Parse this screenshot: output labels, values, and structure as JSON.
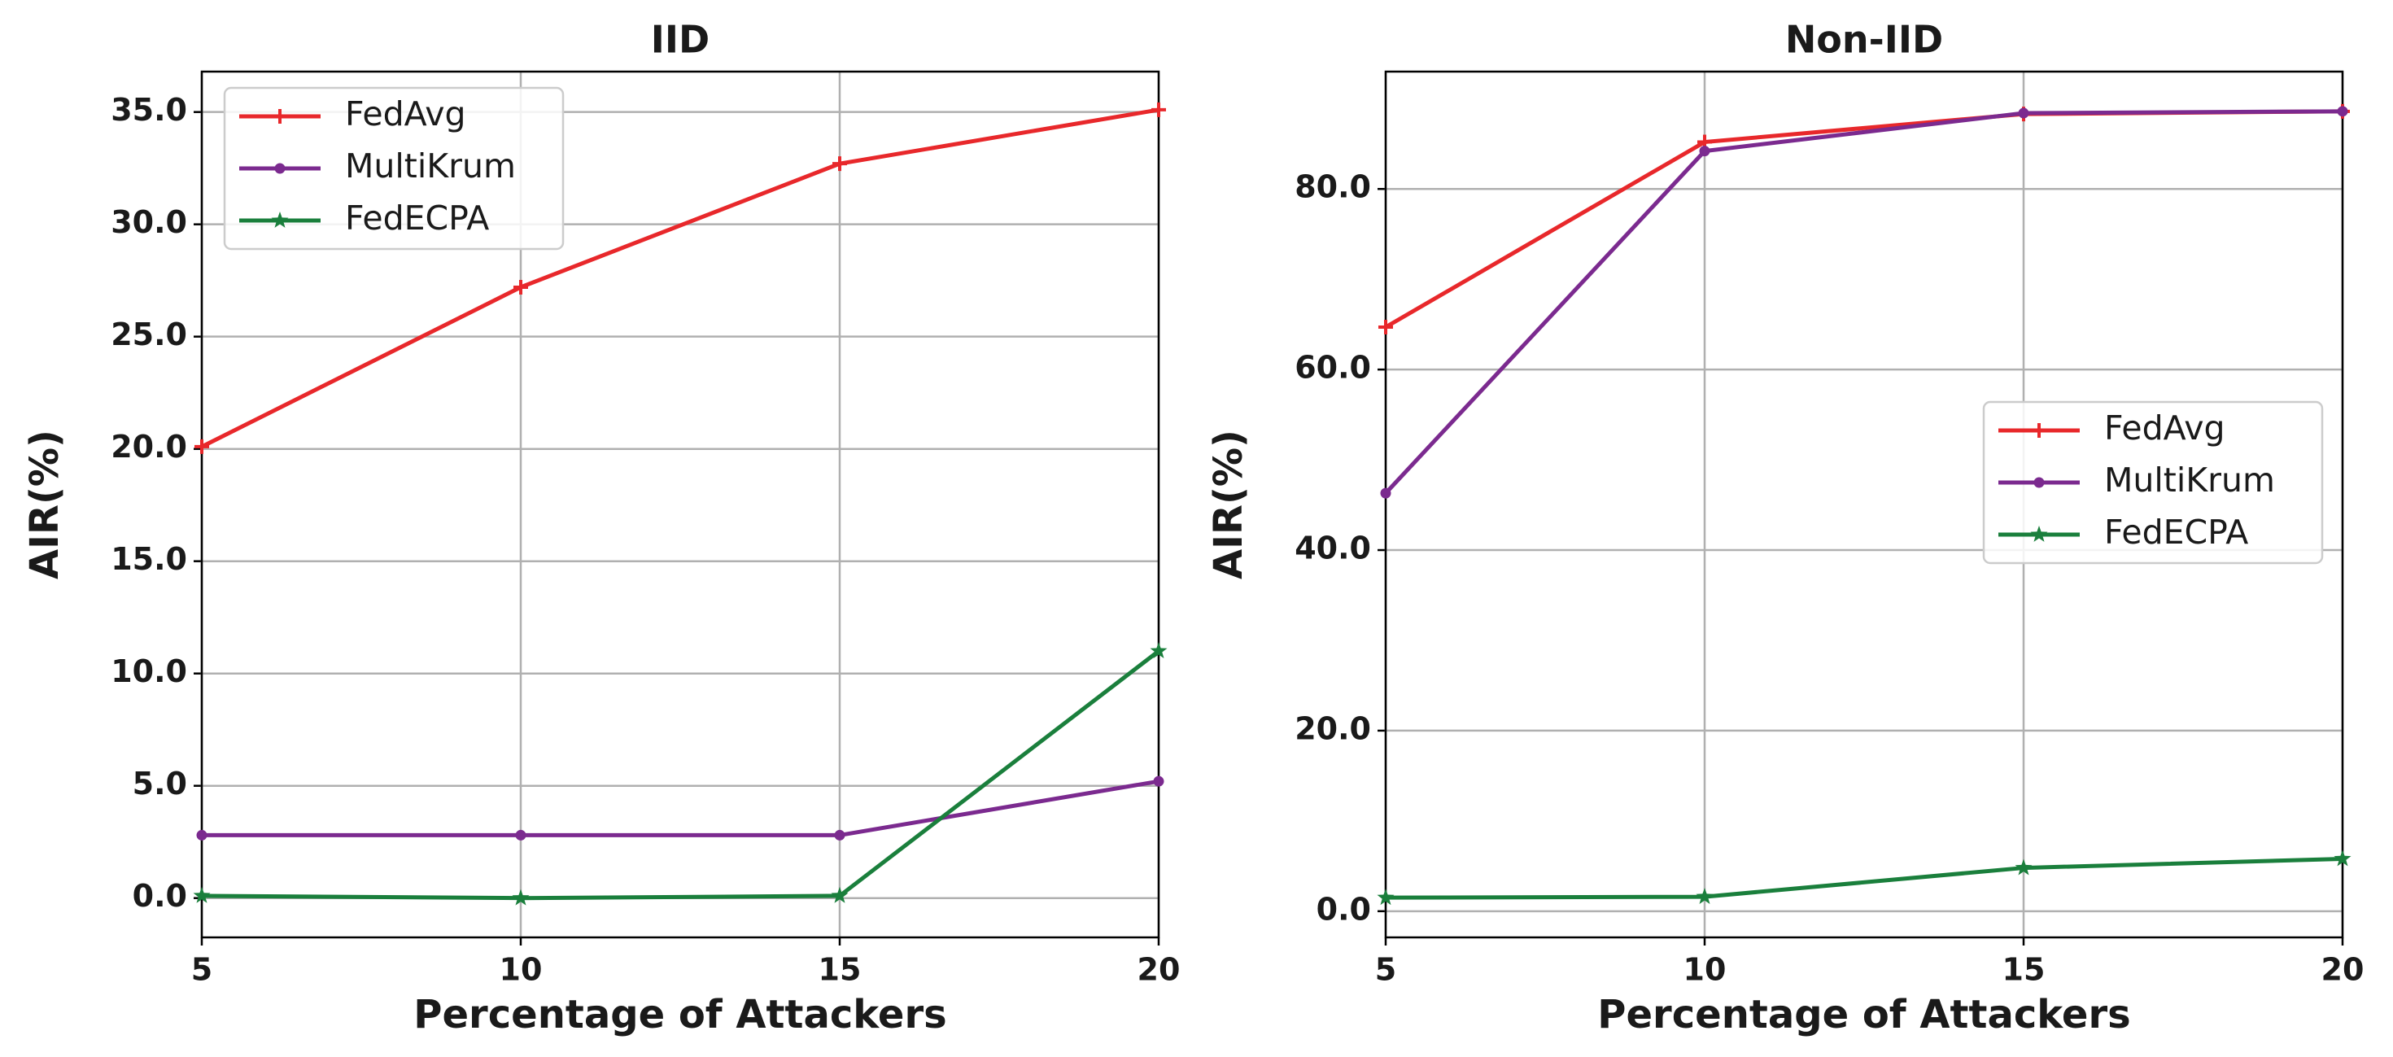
{
  "chart_data": [
    {
      "type": "line",
      "title": "IID",
      "xlabel": "Percentage of Attackers",
      "ylabel": "AIR(%)",
      "x": [
        5,
        10,
        15,
        20
      ],
      "xlim": [
        5,
        20
      ],
      "xticks": [
        5,
        10,
        15,
        20
      ],
      "ylim": [
        -1.75,
        36.8
      ],
      "yticks": [
        {
          "value": 0,
          "label": "0.0"
        },
        {
          "value": 5,
          "label": "5.0"
        },
        {
          "value": 10,
          "label": "10.0"
        },
        {
          "value": 15,
          "label": "15.0"
        },
        {
          "value": 20,
          "label": "20.0"
        },
        {
          "value": 25,
          "label": "25.0"
        },
        {
          "value": 30,
          "label": "30.0"
        },
        {
          "value": 35,
          "label": "35.0"
        }
      ],
      "grid": true,
      "legend": "upper left",
      "series": [
        {
          "name": "FedAvg",
          "color": "#e8282b",
          "marker": "plus",
          "values": [
            20.1,
            27.2,
            32.7,
            35.1
          ]
        },
        {
          "name": "MultiKrum",
          "color": "#7b2a8f",
          "marker": "circle",
          "values": [
            2.8,
            2.8,
            2.8,
            5.2
          ]
        },
        {
          "name": "FedECPA",
          "color": "#1a7f3c",
          "marker": "star",
          "values": [
            0.1,
            0.0,
            0.1,
            11.0
          ]
        }
      ]
    },
    {
      "type": "line",
      "title": "Non-IID",
      "xlabel": "Percentage of Attackers",
      "ylabel": "AIR(%)",
      "x": [
        5,
        10,
        15,
        20
      ],
      "xlim": [
        5,
        20
      ],
      "xticks": [
        5,
        10,
        15,
        20
      ],
      "ylim": [
        -2.9,
        93
      ],
      "yticks": [
        {
          "value": 0,
          "label": "0.0"
        },
        {
          "value": 20,
          "label": "20.0"
        },
        {
          "value": 40,
          "label": "40.0"
        },
        {
          "value": 60,
          "label": "60.0"
        },
        {
          "value": 80,
          "label": "80.0"
        }
      ],
      "grid": true,
      "legend": "center right",
      "series": [
        {
          "name": "FedAvg",
          "color": "#e8282b",
          "marker": "plus",
          "values": [
            64.7,
            85.2,
            88.3,
            88.6
          ]
        },
        {
          "name": "MultiKrum",
          "color": "#7b2a8f",
          "marker": "circle",
          "values": [
            46.3,
            84.2,
            88.4,
            88.6
          ]
        },
        {
          "name": "FedECPA",
          "color": "#1a7f3c",
          "marker": "star",
          "values": [
            1.5,
            1.6,
            4.8,
            5.8
          ]
        }
      ]
    }
  ]
}
